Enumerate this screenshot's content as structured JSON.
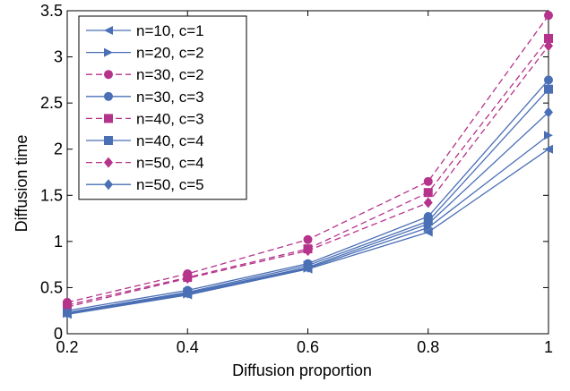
{
  "chart_data": {
    "type": "line",
    "title": "",
    "xlabel": "Diffusion proportion",
    "ylabel": "Diffusion time",
    "xlim": [
      0.2,
      1
    ],
    "ylim": [
      0,
      3.5
    ],
    "xticks": [
      "0.2",
      "0.4",
      "0.6",
      "0.8",
      "1"
    ],
    "yticks": [
      "0",
      "0.5",
      "1",
      "1.5",
      "2",
      "2.5",
      "3",
      "3.5"
    ],
    "grid": false,
    "legend_position": "top-left",
    "x": [
      0.2,
      0.4,
      0.6,
      0.8,
      1.0
    ],
    "series": [
      {
        "name": "n=10, c=1",
        "values": [
          0.21,
          0.42,
          0.7,
          1.1,
          2.0
        ],
        "color": "#4a6fb5",
        "dash": "solid",
        "marker": "triangle-left"
      },
      {
        "name": "n=20, c=2",
        "values": [
          0.22,
          0.43,
          0.71,
          1.15,
          2.15
        ],
        "color": "#4a6fb5",
        "dash": "solid",
        "marker": "triangle-right"
      },
      {
        "name": "n=30, c=2",
        "values": [
          0.34,
          0.65,
          1.02,
          1.65,
          3.45
        ],
        "color": "#b5338a",
        "dash": "dashed",
        "marker": "circle"
      },
      {
        "name": "n=30, c=3",
        "values": [
          0.25,
          0.47,
          0.76,
          1.27,
          2.75
        ],
        "color": "#4a6fb5",
        "dash": "solid",
        "marker": "circle"
      },
      {
        "name": "n=40, c=3",
        "values": [
          0.31,
          0.61,
          0.92,
          1.53,
          3.2
        ],
        "color": "#b5338a",
        "dash": "dashed",
        "marker": "square"
      },
      {
        "name": "n=40, c=4",
        "values": [
          0.23,
          0.45,
          0.74,
          1.22,
          2.65
        ],
        "color": "#4a6fb5",
        "dash": "solid",
        "marker": "square"
      },
      {
        "name": "n=50, c=4",
        "values": [
          0.29,
          0.6,
          0.9,
          1.42,
          3.12
        ],
        "color": "#b5338a",
        "dash": "dashed",
        "marker": "diamond"
      },
      {
        "name": "n=50, c=5",
        "values": [
          0.22,
          0.44,
          0.72,
          1.19,
          2.4
        ],
        "color": "#4a6fb5",
        "dash": "solid",
        "marker": "diamond"
      }
    ]
  }
}
